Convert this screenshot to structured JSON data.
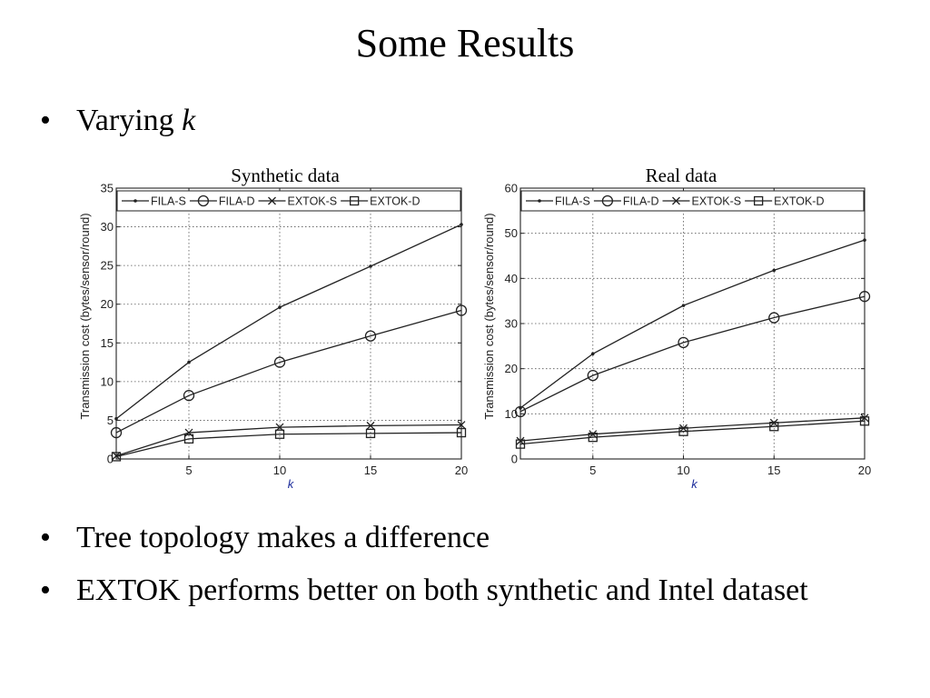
{
  "slide": {
    "title": "Some Results",
    "bullets": [
      {
        "symbol": "•",
        "text": "Varying ",
        "emphasis": "k"
      },
      {
        "symbol": "•",
        "text": "Tree topology makes a difference"
      },
      {
        "symbol": "•",
        "text": "EXTOK performs better on both synthetic and Intel dataset"
      }
    ]
  },
  "chart_data": [
    {
      "type": "line",
      "title": "Synthetic data",
      "xlabel": "k",
      "ylabel": "Transmission cost (bytes/sensor/round)",
      "xlim": [
        1,
        20
      ],
      "ylim": [
        0,
        35
      ],
      "xticks": [
        5,
        10,
        15,
        20
      ],
      "yticks": [
        0,
        5,
        10,
        15,
        20,
        25,
        30,
        35
      ],
      "grid": true,
      "legend": "top",
      "x": [
        1,
        5,
        10,
        15,
        20
      ],
      "series": [
        {
          "name": "FILA-S",
          "marker": "dot",
          "values": [
            5.2,
            12.5,
            19.6,
            24.9,
            30.3
          ]
        },
        {
          "name": "FILA-D",
          "marker": "circle",
          "values": [
            3.4,
            8.2,
            12.5,
            15.9,
            19.2
          ]
        },
        {
          "name": "EXTOK-S",
          "marker": "x",
          "values": [
            0.4,
            3.4,
            4.1,
            4.3,
            4.4
          ]
        },
        {
          "name": "EXTOK-D",
          "marker": "square",
          "values": [
            0.3,
            2.6,
            3.2,
            3.3,
            3.4
          ]
        }
      ]
    },
    {
      "type": "line",
      "title": "Real data",
      "xlabel": "k",
      "ylabel": "Transmission cost (bytes/sensor/round)",
      "xlim": [
        1,
        20
      ],
      "ylim": [
        0,
        60
      ],
      "xticks": [
        5,
        10,
        15,
        20
      ],
      "yticks": [
        0,
        10,
        20,
        30,
        40,
        50,
        60
      ],
      "grid": true,
      "legend": "top",
      "x": [
        1,
        5,
        10,
        15,
        20
      ],
      "series": [
        {
          "name": "FILA-S",
          "marker": "dot",
          "values": [
            11.3,
            23.3,
            34.0,
            41.8,
            48.5
          ]
        },
        {
          "name": "FILA-D",
          "marker": "circle",
          "values": [
            10.5,
            18.5,
            25.8,
            31.3,
            36.0
          ]
        },
        {
          "name": "EXTOK-S",
          "marker": "x",
          "values": [
            4.0,
            5.5,
            6.8,
            8.0,
            9.1
          ]
        },
        {
          "name": "EXTOK-D",
          "marker": "square",
          "values": [
            3.3,
            4.8,
            6.1,
            7.2,
            8.4
          ]
        }
      ]
    }
  ]
}
